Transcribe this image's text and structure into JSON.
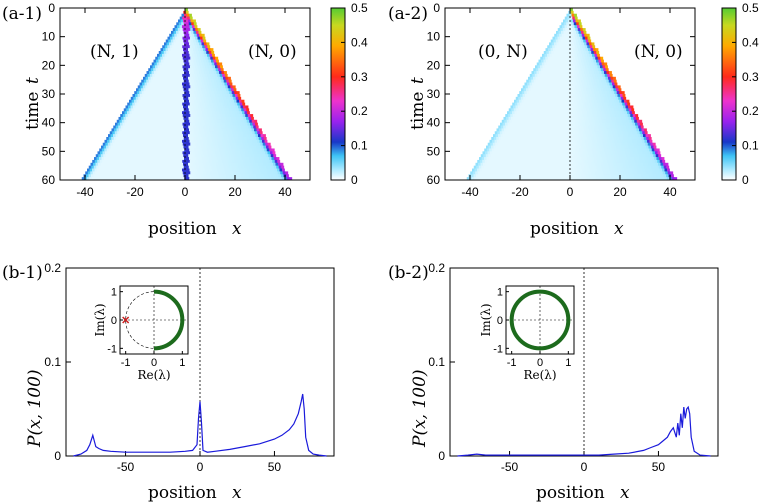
{
  "chart_data": [
    {
      "id": "a1",
      "type": "heatmap",
      "panel_label": "(a-1)",
      "xlabel": "position",
      "xlabel_var": "x",
      "ylabel": "time",
      "ylabel_var": "t",
      "xlim": [
        -50,
        50
      ],
      "ylim": [
        0,
        60
      ],
      "x_ticks": [
        "-40",
        "-20",
        "0",
        "20",
        "40"
      ],
      "y_ticks": [
        "0",
        "10",
        "20",
        "30",
        "40",
        "50",
        "60"
      ],
      "colorbar_ticks": [
        "0",
        "0.1",
        "0.2",
        "0.3",
        "0.4",
        "0.5"
      ],
      "colorbar_range": [
        0,
        0.5
      ],
      "annotations": [
        "(N, 1)",
        "(N, 0)"
      ],
      "features": {
        "left_front_speed": 0.7,
        "right_front_speed": 0.7,
        "localized_at_origin": true,
        "right_peak": 0.45,
        "left_peak": 0.08
      }
    },
    {
      "id": "a2",
      "type": "heatmap",
      "panel_label": "(a-2)",
      "xlabel": "position",
      "xlabel_var": "x",
      "ylabel": "",
      "ylabel_var": "",
      "xlim": [
        -50,
        50
      ],
      "ylim": [
        0,
        60
      ],
      "x_ticks": [
        "-40",
        "-20",
        "0",
        "20",
        "40"
      ],
      "y_ticks": [
        "0",
        "10",
        "20",
        "30",
        "40",
        "50",
        "60"
      ],
      "colorbar_ticks": [
        "0",
        "0.1",
        "0.2",
        "0.3",
        "0.4",
        "0.5"
      ],
      "colorbar_range": [
        0,
        0.5
      ],
      "annotations": [
        "(0, N)",
        "(N, 0)"
      ],
      "features": {
        "left_front_speed": 0.7,
        "right_front_speed": 0.7,
        "localized_at_origin": false,
        "right_peak": 0.45,
        "left_peak": 0.03
      }
    },
    {
      "id": "b1",
      "type": "line",
      "panel_label": "(b-1)",
      "xlabel": "position",
      "xlabel_var": "x",
      "ylabel": "P(x, 100)",
      "xlim": [
        -90,
        90
      ],
      "ylim": [
        0,
        0.2
      ],
      "x_ticks": [
        "-50",
        "0",
        "50"
      ],
      "y_ticks": [
        "0",
        "0.1",
        "0.2"
      ],
      "series": [
        {
          "x": [
            -85,
            -80,
            -76,
            -74,
            -72,
            -71,
            -70,
            -68,
            -65,
            -60,
            -50,
            -40,
            -30,
            -20,
            -10,
            -5,
            -2,
            -1,
            0,
            1,
            2,
            5,
            10,
            20,
            30,
            40,
            50,
            55,
            60,
            63,
            66,
            68,
            69,
            70,
            71,
            73,
            76,
            80,
            85
          ],
          "y": [
            0,
            0.002,
            0.006,
            0.012,
            0.022,
            0.016,
            0.01,
            0.008,
            0.006,
            0.005,
            0.004,
            0.004,
            0.004,
            0.004,
            0.005,
            0.006,
            0.012,
            0.04,
            0.058,
            0.035,
            0.006,
            0.004,
            0.005,
            0.007,
            0.01,
            0.013,
            0.018,
            0.022,
            0.028,
            0.034,
            0.045,
            0.058,
            0.066,
            0.05,
            0.02,
            0.006,
            0.002,
            0.001,
            0
          ]
        }
      ],
      "inset": {
        "xlabel": "Re(λ)",
        "ylabel": "Im(λ)",
        "x_ticks": [
          "-1",
          "0",
          "1"
        ],
        "y_ticks": [
          "-1",
          "0",
          "1"
        ],
        "arc_start_deg": -90,
        "arc_end_deg": 90,
        "dashed_unit_circle": true,
        "eigenvalue_point": [
          -1,
          0
        ],
        "arc_color": "#1d6b1d",
        "point_color": "#cc2222"
      }
    },
    {
      "id": "b2",
      "type": "line",
      "panel_label": "(b-2)",
      "xlabel": "position",
      "xlabel_var": "x",
      "ylabel": "P(x, 100)",
      "xlim": [
        -90,
        90
      ],
      "ylim": [
        0,
        0.2
      ],
      "x_ticks": [
        "-50",
        "0",
        "50"
      ],
      "y_ticks": [
        "0",
        "0.1",
        "0.2"
      ],
      "series": [
        {
          "x": [
            -85,
            -78,
            -72,
            -66,
            -60,
            -50,
            -40,
            -30,
            -20,
            -10,
            0,
            10,
            20,
            30,
            40,
            45,
            50,
            53,
            56,
            58,
            60,
            62,
            63,
            64,
            65,
            66,
            67,
            68,
            69,
            70,
            71,
            72,
            74,
            78,
            85
          ],
          "y": [
            0,
            0.001,
            0.002,
            0.001,
            0.001,
            0.001,
            0.001,
            0.001,
            0.001,
            0.001,
            0.001,
            0.001,
            0.002,
            0.003,
            0.006,
            0.009,
            0.012,
            0.016,
            0.02,
            0.026,
            0.03,
            0.02,
            0.035,
            0.022,
            0.045,
            0.03,
            0.052,
            0.04,
            0.05,
            0.052,
            0.045,
            0.02,
            0.005,
            0.001,
            0
          ]
        }
      ],
      "inset": {
        "xlabel": "Re(λ)",
        "ylabel": "Im(λ)",
        "x_ticks": [
          "-1",
          "0",
          "1"
        ],
        "y_ticks": [
          "-1",
          "0",
          "1"
        ],
        "arc_start_deg": 0,
        "arc_end_deg": 360,
        "dashed_unit_circle": false,
        "eigenvalue_point": null,
        "arc_color": "#1d6b1d",
        "point_color": "#cc2222"
      }
    }
  ],
  "colors": {
    "line": "#1a1adb",
    "colormap": [
      "#ffffff",
      "#5ad4ff",
      "#1818b8",
      "#cc33ff",
      "#ff2222",
      "#ffcc00",
      "#66dd33"
    ]
  }
}
